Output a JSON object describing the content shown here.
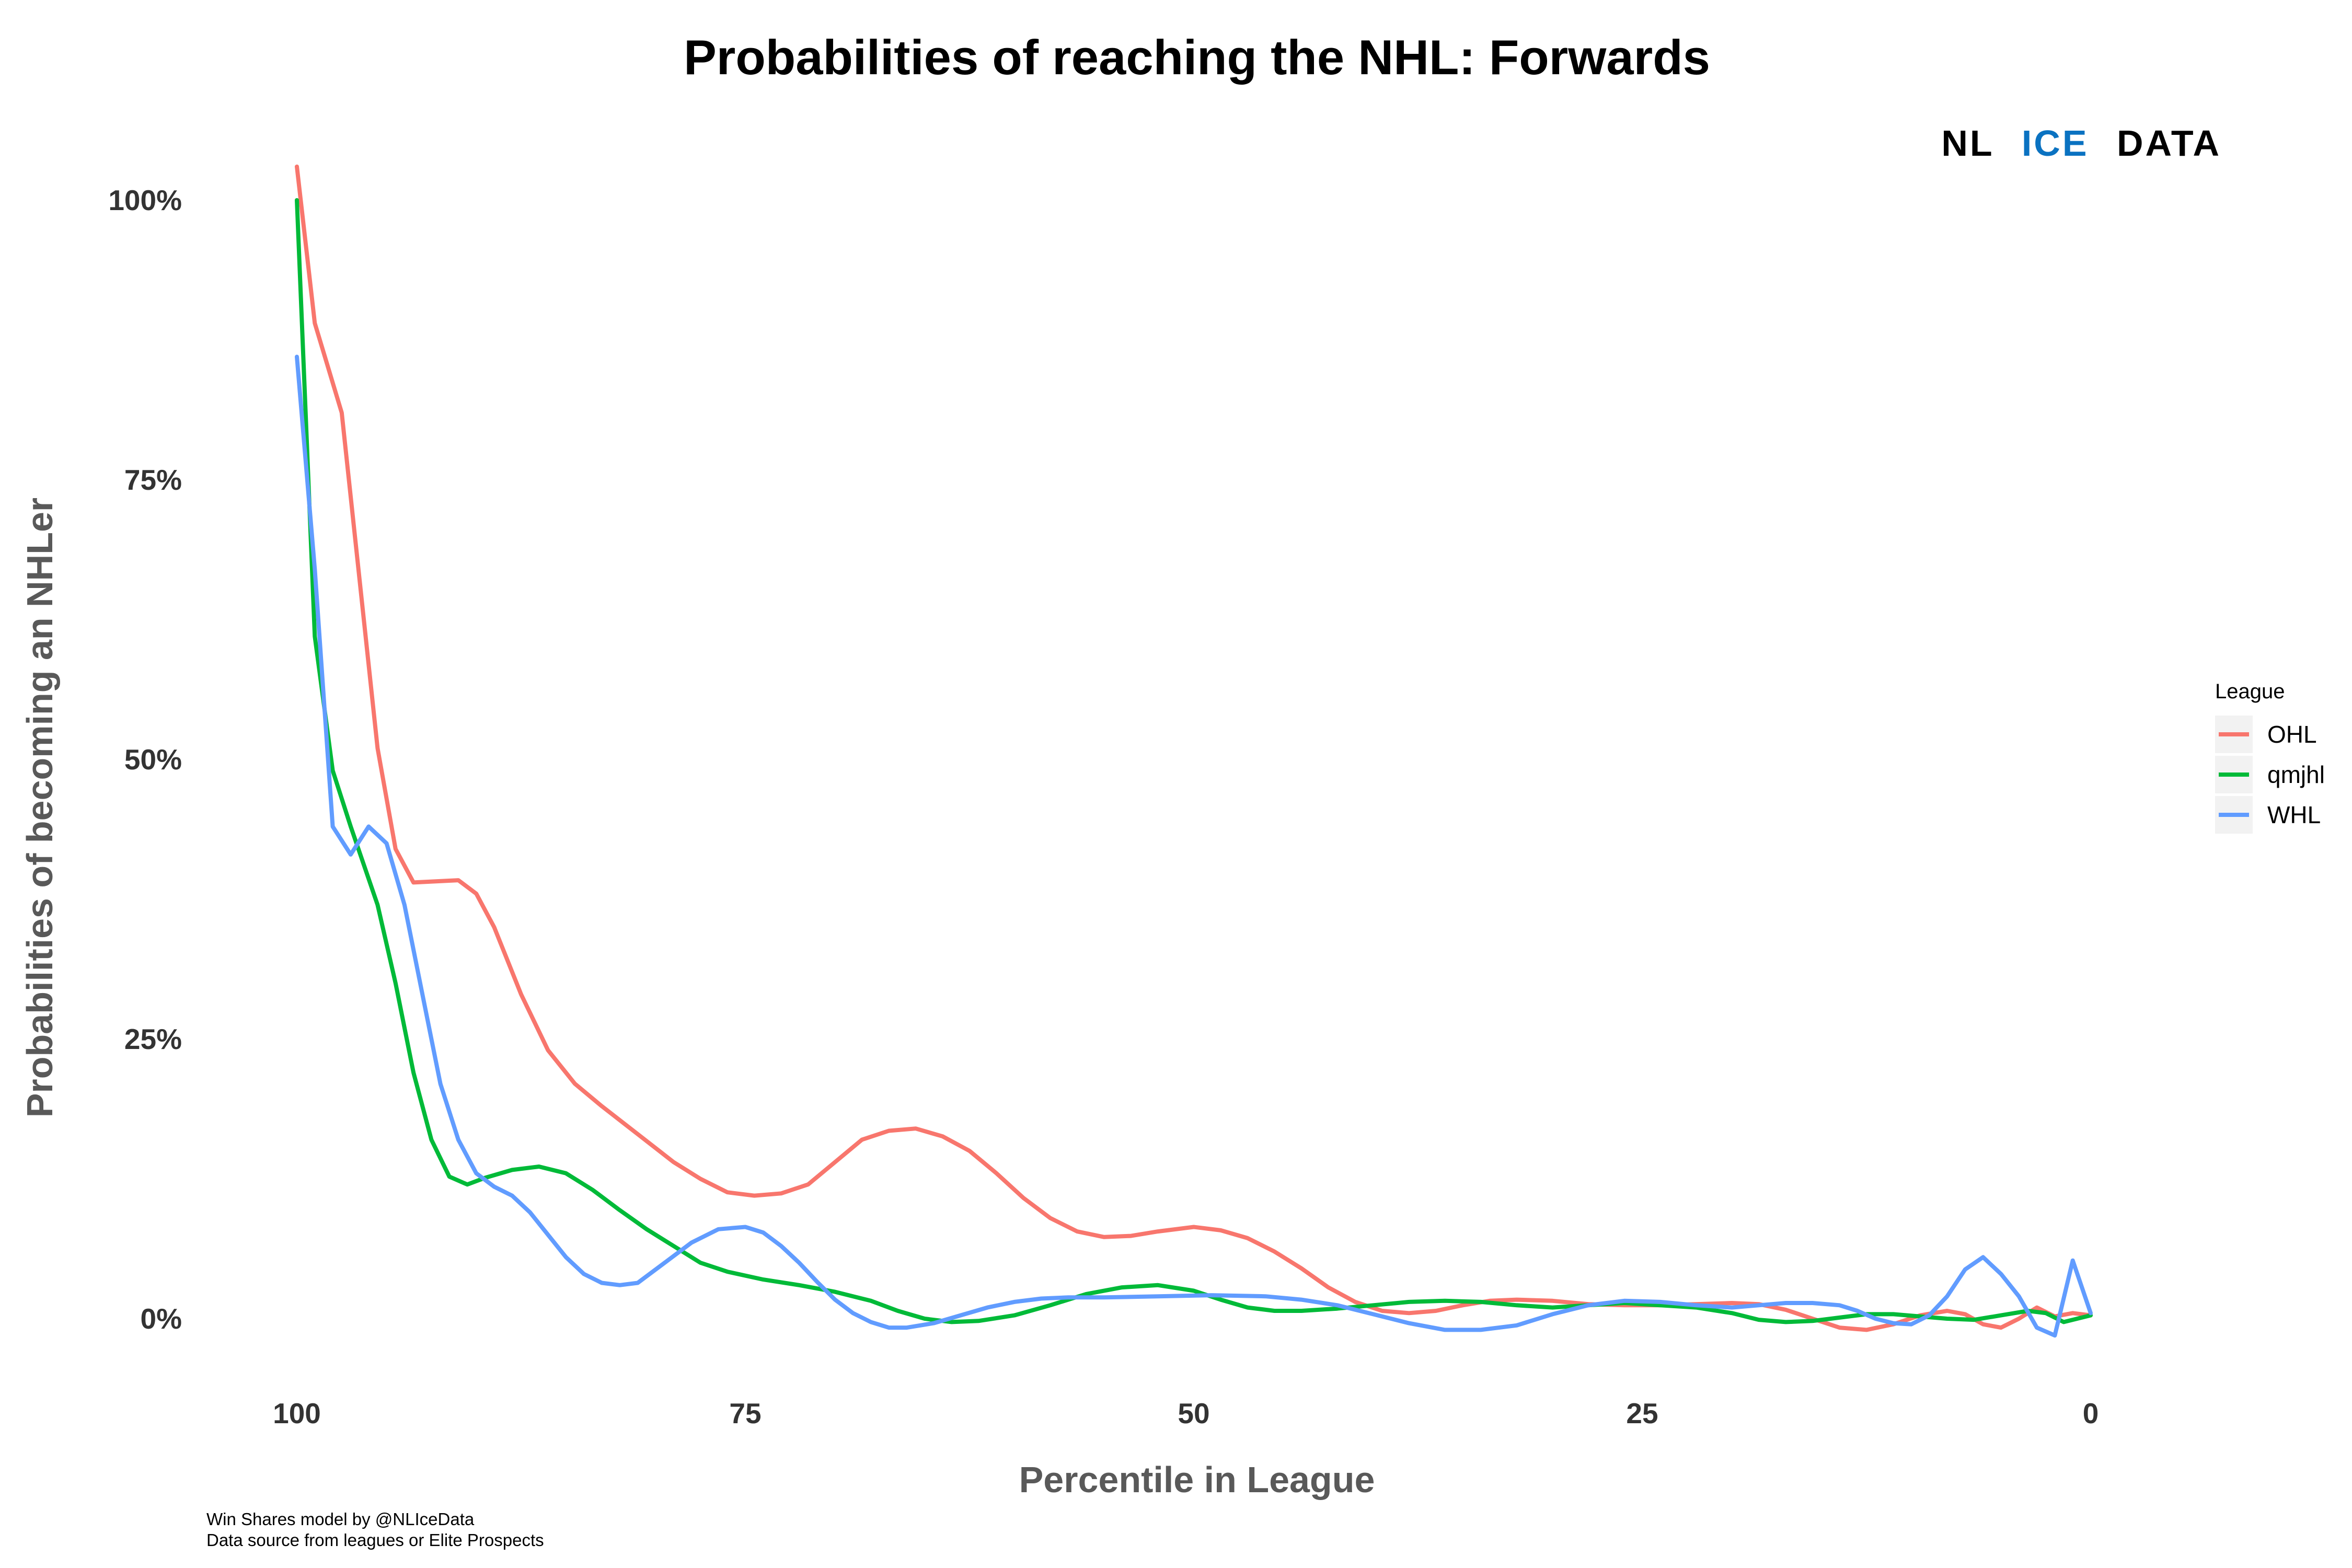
{
  "chart_data": {
    "type": "line",
    "title": "Probabilities of reaching the NHL: Forwards",
    "xlabel": "Percentile in League",
    "ylabel": "Probabilities of becoming an NHLer",
    "xlim": [
      100,
      0
    ],
    "ylim": [
      -0.05,
      1.04
    ],
    "x_reversed": true,
    "x_ticks": [
      {
        "value": 100,
        "label": "100"
      },
      {
        "value": 75,
        "label": "75"
      },
      {
        "value": 50,
        "label": "50"
      },
      {
        "value": 25,
        "label": "25"
      },
      {
        "value": 0,
        "label": "0"
      }
    ],
    "y_ticks": [
      {
        "value": 0,
        "label": "0%"
      },
      {
        "value": 0.25,
        "label": "25%"
      },
      {
        "value": 0.5,
        "label": "50%"
      },
      {
        "value": 0.75,
        "label": "75%"
      },
      {
        "value": 1.0,
        "label": "100%"
      }
    ],
    "grid": false,
    "legend": {
      "title": "League",
      "position": "right"
    },
    "series": [
      {
        "name": "OHL",
        "color": "#F8766D",
        "points": [
          [
            100,
            1.03
          ],
          [
            99,
            0.89
          ],
          [
            97.5,
            0.81
          ],
          [
            96.5,
            0.66
          ],
          [
            95.5,
            0.51
          ],
          [
            94.5,
            0.42
          ],
          [
            93.5,
            0.39
          ],
          [
            91,
            0.392
          ],
          [
            90,
            0.38
          ],
          [
            89,
            0.35
          ],
          [
            87.5,
            0.29
          ],
          [
            86,
            0.24
          ],
          [
            84.5,
            0.21
          ],
          [
            83,
            0.19
          ],
          [
            81,
            0.165
          ],
          [
            79,
            0.14
          ],
          [
            77.5,
            0.125
          ],
          [
            76,
            0.113
          ],
          [
            74.5,
            0.11
          ],
          [
            73,
            0.112
          ],
          [
            71.5,
            0.12
          ],
          [
            70,
            0.14
          ],
          [
            68.5,
            0.16
          ],
          [
            67,
            0.168
          ],
          [
            65.5,
            0.17
          ],
          [
            64,
            0.163
          ],
          [
            62.5,
            0.15
          ],
          [
            61,
            0.13
          ],
          [
            59.5,
            0.108
          ],
          [
            58,
            0.09
          ],
          [
            56.5,
            0.078
          ],
          [
            55,
            0.073
          ],
          [
            53.5,
            0.074
          ],
          [
            52,
            0.078
          ],
          [
            50,
            0.082
          ],
          [
            48.5,
            0.079
          ],
          [
            47,
            0.072
          ],
          [
            45.5,
            0.06
          ],
          [
            44,
            0.045
          ],
          [
            42.5,
            0.028
          ],
          [
            41,
            0.015
          ],
          [
            39.5,
            0.007
          ],
          [
            38,
            0.005
          ],
          [
            36.5,
            0.007
          ],
          [
            35,
            0.012
          ],
          [
            33.5,
            0.016
          ],
          [
            32,
            0.017
          ],
          [
            30,
            0.016
          ],
          [
            28,
            0.013
          ],
          [
            26,
            0.012
          ],
          [
            24,
            0.012
          ],
          [
            22,
            0.013
          ],
          [
            20,
            0.014
          ],
          [
            18.5,
            0.013
          ],
          [
            17,
            0.008
          ],
          [
            15.5,
            0.0
          ],
          [
            14,
            -0.008
          ],
          [
            12.5,
            -0.01
          ],
          [
            11,
            -0.005
          ],
          [
            9.5,
            0.003
          ],
          [
            8,
            0.007
          ],
          [
            7,
            0.004
          ],
          [
            6,
            -0.005
          ],
          [
            5,
            -0.008
          ],
          [
            4,
            0.0
          ],
          [
            3,
            0.01
          ],
          [
            2,
            0.002
          ],
          [
            1,
            0.005
          ],
          [
            0,
            0.003
          ]
        ]
      },
      {
        "name": "qmjhl",
        "color": "#00BA38",
        "points": [
          [
            100,
            1.0
          ],
          [
            99,
            0.61
          ],
          [
            98,
            0.49
          ],
          [
            97,
            0.44
          ],
          [
            95.5,
            0.37
          ],
          [
            94.5,
            0.3
          ],
          [
            93.5,
            0.22
          ],
          [
            92.5,
            0.16
          ],
          [
            91.5,
            0.127
          ],
          [
            90.5,
            0.12
          ],
          [
            89.5,
            0.126
          ],
          [
            88,
            0.133
          ],
          [
            86.5,
            0.136
          ],
          [
            85,
            0.13
          ],
          [
            83.5,
            0.115
          ],
          [
            82,
            0.097
          ],
          [
            80.5,
            0.08
          ],
          [
            79,
            0.065
          ],
          [
            77.5,
            0.05
          ],
          [
            76,
            0.042
          ],
          [
            74,
            0.035
          ],
          [
            72,
            0.03
          ],
          [
            70,
            0.024
          ],
          [
            68,
            0.016
          ],
          [
            66.5,
            0.007
          ],
          [
            65,
            0.0
          ],
          [
            63.5,
            -0.003
          ],
          [
            62,
            -0.002
          ],
          [
            60,
            0.003
          ],
          [
            58,
            0.012
          ],
          [
            56,
            0.022
          ],
          [
            54,
            0.028
          ],
          [
            52,
            0.03
          ],
          [
            50,
            0.025
          ],
          [
            48.5,
            0.017
          ],
          [
            47,
            0.01
          ],
          [
            45.5,
            0.007
          ],
          [
            44,
            0.007
          ],
          [
            42,
            0.009
          ],
          [
            40,
            0.012
          ],
          [
            38,
            0.015
          ],
          [
            36,
            0.016
          ],
          [
            34,
            0.015
          ],
          [
            32,
            0.012
          ],
          [
            30,
            0.01
          ],
          [
            28,
            0.012
          ],
          [
            26,
            0.014
          ],
          [
            24,
            0.012
          ],
          [
            22,
            0.01
          ],
          [
            20,
            0.005
          ],
          [
            18.5,
            -0.001
          ],
          [
            17,
            -0.003
          ],
          [
            15.5,
            -0.002
          ],
          [
            14,
            0.001
          ],
          [
            12.5,
            0.004
          ],
          [
            11,
            0.004
          ],
          [
            9.5,
            0.002
          ],
          [
            8,
            0.0
          ],
          [
            6.5,
            -0.001
          ],
          [
            5,
            0.003
          ],
          [
            3.5,
            0.007
          ],
          [
            2.5,
            0.005
          ],
          [
            1.5,
            -0.003
          ],
          [
            0,
            0.003
          ]
        ]
      },
      {
        "name": "WHL",
        "color": "#619CFF",
        "points": [
          [
            100,
            0.86
          ],
          [
            99,
            0.67
          ],
          [
            98,
            0.44
          ],
          [
            97,
            0.415
          ],
          [
            96,
            0.44
          ],
          [
            95,
            0.425
          ],
          [
            94,
            0.37
          ],
          [
            93,
            0.29
          ],
          [
            92,
            0.21
          ],
          [
            91,
            0.16
          ],
          [
            90,
            0.13
          ],
          [
            89,
            0.118
          ],
          [
            88,
            0.11
          ],
          [
            87,
            0.095
          ],
          [
            86,
            0.075
          ],
          [
            85,
            0.055
          ],
          [
            84,
            0.04
          ],
          [
            83,
            0.032
          ],
          [
            82,
            0.03
          ],
          [
            81,
            0.032
          ],
          [
            79.5,
            0.05
          ],
          [
            78,
            0.068
          ],
          [
            76.5,
            0.08
          ],
          [
            75,
            0.082
          ],
          [
            74,
            0.077
          ],
          [
            73,
            0.065
          ],
          [
            72,
            0.05
          ],
          [
            71,
            0.033
          ],
          [
            70,
            0.017
          ],
          [
            69,
            0.005
          ],
          [
            68,
            -0.003
          ],
          [
            67,
            -0.008
          ],
          [
            66,
            -0.008
          ],
          [
            64.5,
            -0.004
          ],
          [
            63,
            0.003
          ],
          [
            61.5,
            0.01
          ],
          [
            60,
            0.015
          ],
          [
            58.5,
            0.018
          ],
          [
            57,
            0.019
          ],
          [
            55,
            0.019
          ],
          [
            52,
            0.02
          ],
          [
            49,
            0.021
          ],
          [
            46,
            0.02
          ],
          [
            44,
            0.017
          ],
          [
            42,
            0.012
          ],
          [
            40,
            0.004
          ],
          [
            38,
            -0.004
          ],
          [
            36,
            -0.01
          ],
          [
            34,
            -0.01
          ],
          [
            32,
            -0.006
          ],
          [
            30,
            0.004
          ],
          [
            28,
            0.012
          ],
          [
            26,
            0.016
          ],
          [
            24,
            0.015
          ],
          [
            22,
            0.012
          ],
          [
            20,
            0.01
          ],
          [
            18.5,
            0.012
          ],
          [
            17,
            0.014
          ],
          [
            15.5,
            0.014
          ],
          [
            14,
            0.012
          ],
          [
            13,
            0.007
          ],
          [
            12,
            0.0
          ],
          [
            11,
            -0.004
          ],
          [
            10,
            -0.005
          ],
          [
            9,
            0.003
          ],
          [
            8,
            0.02
          ],
          [
            7,
            0.044
          ],
          [
            6,
            0.055
          ],
          [
            5,
            0.04
          ],
          [
            4,
            0.02
          ],
          [
            3,
            -0.008
          ],
          [
            2,
            -0.015
          ],
          [
            1,
            0.052
          ],
          [
            0,
            0.005
          ]
        ]
      }
    ],
    "caption": [
      "Win Shares model by @NLIceData",
      "Data source from leagues or Elite Prospects"
    ]
  },
  "logo": {
    "part1": "NL",
    "part2": "ICE",
    "part3": "DATA",
    "accent_color": "#0A72C1"
  }
}
